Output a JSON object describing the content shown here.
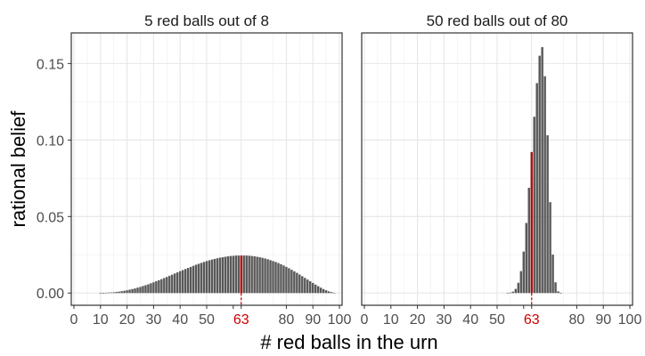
{
  "chart_data": {
    "type": "bar",
    "xlabel": "# red balls in the urn",
    "ylabel": "rational belief",
    "ylim": [
      -0.008,
      0.17
    ],
    "xlim": [
      -1,
      101
    ],
    "y_ticks": [
      0,
      0.05,
      0.1,
      0.15
    ],
    "y_tick_labels": [
      "0.00",
      "0.05",
      "0.10",
      "0.15"
    ],
    "grid": true,
    "bar_color": "#595959",
    "highlight_color": "#cc0000",
    "highlight_x": 63,
    "highlight_label": "63",
    "panels": [
      {
        "title": "5 red balls out of 8",
        "draws": 8,
        "red": 5,
        "x": [
          0,
          1,
          2,
          3,
          4,
          5,
          6,
          7,
          8,
          9,
          10,
          11,
          12,
          13,
          14,
          15,
          16,
          17,
          18,
          19,
          20,
          21,
          22,
          23,
          24,
          25,
          26,
          27,
          28,
          29,
          30,
          31,
          32,
          33,
          34,
          35,
          36,
          37,
          38,
          39,
          40,
          41,
          42,
          43,
          44,
          45,
          46,
          47,
          48,
          49,
          50,
          51,
          52,
          53,
          54,
          55,
          56,
          57,
          58,
          59,
          60,
          61,
          62,
          63,
          64,
          65,
          66,
          67,
          68,
          69,
          70,
          71,
          72,
          73,
          74,
          75,
          76,
          77,
          78,
          79,
          80,
          81,
          82,
          83,
          84,
          85,
          86,
          87,
          88,
          89,
          90,
          91,
          92,
          93,
          94,
          95,
          96,
          97,
          98,
          99,
          100
        ],
        "values": [
          0.0,
          0.0,
          0.0,
          0.0,
          0.0,
          0.0,
          0.0,
          0.0,
          0.0,
          0.0,
          0.0001,
          0.0001,
          0.0002,
          0.0003,
          0.0004,
          0.0005,
          0.0007,
          0.0009,
          0.0012,
          0.0015,
          0.0018,
          0.0022,
          0.0026,
          0.003,
          0.0035,
          0.004,
          0.0046,
          0.0051,
          0.0057,
          0.0064,
          0.007,
          0.0077,
          0.0084,
          0.0091,
          0.0098,
          0.0105,
          0.0113,
          0.012,
          0.0128,
          0.0135,
          0.0143,
          0.015,
          0.0157,
          0.0164,
          0.0171,
          0.0178,
          0.0185,
          0.0191,
          0.0197,
          0.0203,
          0.0209,
          0.0214,
          0.0219,
          0.0223,
          0.0227,
          0.0231,
          0.0234,
          0.0237,
          0.024,
          0.0242,
          0.0243,
          0.0245,
          0.0245,
          0.0245,
          0.0245,
          0.0245,
          0.0244,
          0.0242,
          0.024,
          0.0237,
          0.0234,
          0.023,
          0.0226,
          0.0221,
          0.0215,
          0.0209,
          0.0203,
          0.0196,
          0.0188,
          0.018,
          0.0171,
          0.0162,
          0.0152,
          0.0142,
          0.0132,
          0.0121,
          0.011,
          0.0099,
          0.0088,
          0.0077,
          0.0066,
          0.0055,
          0.0045,
          0.0035,
          0.0026,
          0.0018,
          0.0011,
          0.0006,
          0.0002,
          0.0,
          0.0
        ],
        "x_ticks": [
          0,
          10,
          20,
          30,
          40,
          50,
          63,
          80,
          90,
          100
        ],
        "x_tick_labels": [
          "0",
          "10",
          "20",
          "30",
          "40",
          "50",
          "63",
          "80",
          "90",
          "100"
        ]
      },
      {
        "title": "50 red balls out of 80",
        "draws": 80,
        "red": 50,
        "x": [
          0,
          1,
          2,
          3,
          4,
          5,
          6,
          7,
          8,
          9,
          10,
          11,
          12,
          13,
          14,
          15,
          16,
          17,
          18,
          19,
          20,
          21,
          22,
          23,
          24,
          25,
          26,
          27,
          28,
          29,
          30,
          31,
          32,
          33,
          34,
          35,
          36,
          37,
          38,
          39,
          40,
          41,
          42,
          43,
          44,
          45,
          46,
          47,
          48,
          49,
          50,
          51,
          52,
          53,
          54,
          55,
          56,
          57,
          58,
          59,
          60,
          61,
          62,
          63,
          64,
          65,
          66,
          67,
          68,
          69,
          70,
          71,
          72,
          73,
          74,
          75,
          76,
          77,
          78,
          79,
          80,
          81,
          82,
          83,
          84,
          85,
          86,
          87,
          88,
          89,
          90,
          91,
          92,
          93,
          94,
          95,
          96,
          97,
          98,
          99,
          100
        ],
        "values": [
          0.0,
          0.0,
          0.0,
          0.0,
          0.0,
          0.0,
          0.0,
          0.0,
          0.0,
          0.0,
          0.0,
          0.0,
          0.0,
          0.0,
          0.0,
          0.0,
          0.0,
          0.0,
          0.0,
          0.0,
          0.0,
          0.0,
          0.0,
          0.0,
          0.0,
          0.0,
          0.0,
          0.0,
          0.0,
          0.0,
          0.0,
          0.0,
          0.0,
          0.0,
          0.0,
          0.0,
          0.0,
          0.0,
          0.0,
          0.0,
          0.0,
          0.0,
          0.0,
          0.0,
          0.0,
          0.0,
          0.0,
          0.0,
          0.0,
          0.0,
          0.0,
          0.0,
          0.0,
          0.0,
          0.0001,
          0.0003,
          0.0009,
          0.0027,
          0.0067,
          0.0143,
          0.0271,
          0.0458,
          0.0688,
          0.0921,
          0.1152,
          0.1372,
          0.1551,
          0.1607,
          0.1417,
          0.1031,
          0.0594,
          0.0251,
          0.007,
          0.0011,
          0.0001,
          0.0,
          0.0,
          0.0,
          0.0,
          0.0,
          0.0,
          0.0,
          0.0,
          0.0,
          0.0,
          0.0,
          0.0,
          0.0,
          0.0,
          0.0,
          0.0,
          0.0,
          0.0,
          0.0,
          0.0,
          0.0,
          0.0,
          0.0,
          0.0,
          0.0,
          0.0
        ],
        "x_ticks": [
          0,
          10,
          20,
          30,
          40,
          50,
          63,
          80,
          90,
          100
        ],
        "x_tick_labels": [
          "0",
          "10",
          "20",
          "30",
          "40",
          "50",
          "63",
          "80",
          "90",
          "100"
        ]
      }
    ]
  }
}
